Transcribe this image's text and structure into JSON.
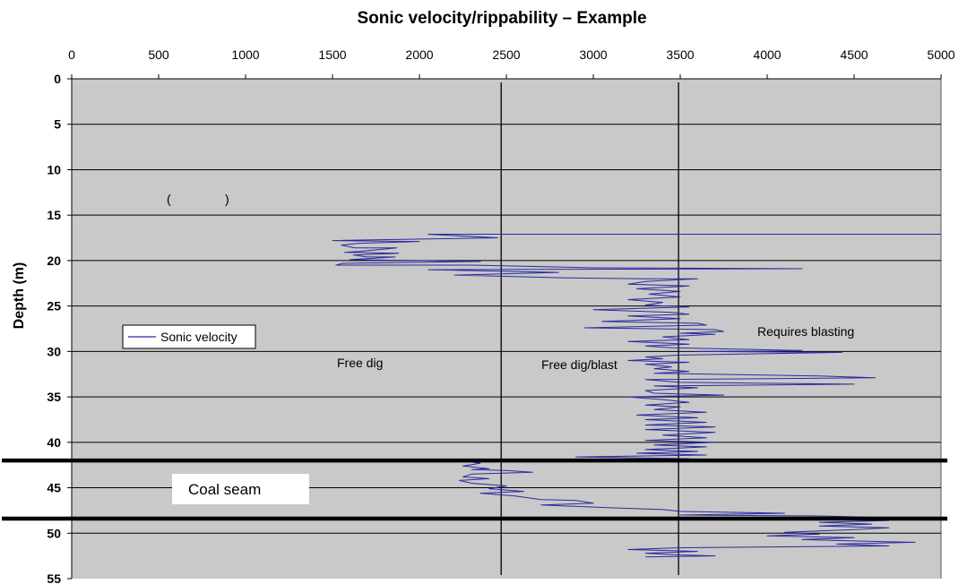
{
  "chart_data": {
    "type": "line",
    "title": "Sonic velocity/rippability – Example",
    "xlabel": "",
    "ylabel": "Depth (m)",
    "xlim": [
      0,
      5000
    ],
    "ylim": [
      0,
      55
    ],
    "y_inverted": true,
    "x_axis_position": "top",
    "x_ticks": [
      "0",
      "500",
      "1000",
      "1500",
      "2000",
      "2500",
      "3000",
      "3500",
      "4000",
      "4500",
      "5000"
    ],
    "y_ticks": [
      "0",
      "5",
      "10",
      "15",
      "20",
      "25",
      "30",
      "35",
      "40",
      "45",
      "50",
      "55"
    ],
    "grid": "horizontal",
    "legend_position": "left",
    "series": [
      {
        "name": "Sonic velocity",
        "color": "#2b2b9e",
        "points": [
          [
            5000,
            17.1
          ],
          [
            2050,
            17.1
          ],
          [
            2450,
            17.5
          ],
          [
            1500,
            17.8
          ],
          [
            2000,
            17.9
          ],
          [
            1650,
            18.1
          ],
          [
            1550,
            18.3
          ],
          [
            1630,
            18.6
          ],
          [
            1870,
            18.6
          ],
          [
            1650,
            19.0
          ],
          [
            1570,
            19.1
          ],
          [
            1880,
            19.2
          ],
          [
            1620,
            19.4
          ],
          [
            1700,
            19.6
          ],
          [
            1860,
            19.6
          ],
          [
            1600,
            19.9
          ],
          [
            2350,
            20.1
          ],
          [
            1560,
            20.3
          ],
          [
            1520,
            20.5
          ],
          [
            2300,
            20.5
          ],
          [
            3000,
            20.8
          ],
          [
            4200,
            20.9
          ],
          [
            2050,
            21.0
          ],
          [
            2800,
            21.3
          ],
          [
            2200,
            21.6
          ],
          [
            2850,
            21.9
          ],
          [
            3300,
            22.0
          ],
          [
            3600,
            22.0
          ],
          [
            3300,
            22.3
          ],
          [
            3200,
            22.6
          ],
          [
            3550,
            22.8
          ],
          [
            3250,
            23.1
          ],
          [
            3500,
            23.4
          ],
          [
            3320,
            23.7
          ],
          [
            3500,
            24.0
          ],
          [
            3200,
            24.3
          ],
          [
            3400,
            24.6
          ],
          [
            3300,
            24.9
          ],
          [
            3550,
            25.1
          ],
          [
            3000,
            25.4
          ],
          [
            3450,
            25.7
          ],
          [
            3550,
            25.9
          ],
          [
            3200,
            26.1
          ],
          [
            3500,
            26.4
          ],
          [
            3050,
            26.7
          ],
          [
            3600,
            26.9
          ],
          [
            3650,
            27.1
          ],
          [
            2950,
            27.4
          ],
          [
            3700,
            27.6
          ],
          [
            3750,
            27.8
          ],
          [
            3500,
            28.0
          ],
          [
            3700,
            28.1
          ],
          [
            3400,
            28.4
          ],
          [
            3550,
            28.7
          ],
          [
            3200,
            28.9
          ],
          [
            3550,
            29.2
          ],
          [
            3300,
            29.4
          ],
          [
            3450,
            29.6
          ],
          [
            4200,
            29.9
          ],
          [
            3600,
            30.0
          ],
          [
            4430,
            30.1
          ],
          [
            3500,
            30.4
          ],
          [
            3300,
            30.6
          ],
          [
            3400,
            30.8
          ],
          [
            3200,
            31.0
          ],
          [
            3550,
            31.2
          ],
          [
            3300,
            31.4
          ],
          [
            3450,
            31.7
          ],
          [
            3350,
            31.9
          ],
          [
            3550,
            32.2
          ],
          [
            3350,
            32.4
          ],
          [
            4300,
            32.7
          ],
          [
            4620,
            32.9
          ],
          [
            3300,
            33.1
          ],
          [
            3500,
            33.4
          ],
          [
            4500,
            33.6
          ],
          [
            3350,
            33.8
          ],
          [
            3600,
            34.0
          ],
          [
            3300,
            34.3
          ],
          [
            3350,
            34.6
          ],
          [
            3750,
            34.8
          ],
          [
            3200,
            35.0
          ],
          [
            3400,
            35.3
          ],
          [
            3550,
            35.6
          ],
          [
            3300,
            35.9
          ],
          [
            3500,
            36.1
          ],
          [
            3350,
            36.4
          ],
          [
            3650,
            36.7
          ],
          [
            3250,
            37.0
          ],
          [
            3600,
            37.3
          ],
          [
            3300,
            37.5
          ],
          [
            3650,
            37.8
          ],
          [
            3300,
            38.1
          ],
          [
            3700,
            38.3
          ],
          [
            3300,
            38.6
          ],
          [
            3700,
            38.9
          ],
          [
            3400,
            39.2
          ],
          [
            3650,
            39.5
          ],
          [
            3300,
            39.8
          ],
          [
            3700,
            40.0
          ],
          [
            3350,
            40.3
          ],
          [
            3650,
            40.5
          ],
          [
            3300,
            40.8
          ],
          [
            3600,
            41.0
          ],
          [
            3250,
            41.2
          ],
          [
            3650,
            41.4
          ],
          [
            2900,
            41.6
          ],
          [
            3550,
            41.8
          ],
          [
            2800,
            41.9
          ],
          [
            2250,
            42.0
          ],
          [
            2350,
            42.3
          ],
          [
            2250,
            42.6
          ],
          [
            2400,
            42.9
          ],
          [
            2300,
            43.0
          ],
          [
            2500,
            43.1
          ],
          [
            2650,
            43.3
          ],
          [
            2300,
            43.5
          ],
          [
            2250,
            43.8
          ],
          [
            2400,
            44.0
          ],
          [
            2230,
            44.2
          ],
          [
            2300,
            44.5
          ],
          [
            2500,
            44.8
          ],
          [
            2400,
            45.1
          ],
          [
            2600,
            45.4
          ],
          [
            2350,
            45.6
          ],
          [
            2550,
            45.9
          ],
          [
            2700,
            46.3
          ],
          [
            2900,
            46.4
          ],
          [
            3000,
            46.7
          ],
          [
            2700,
            46.9
          ],
          [
            3100,
            47.2
          ],
          [
            3400,
            47.4
          ],
          [
            3500,
            47.6
          ],
          [
            4100,
            47.8
          ],
          [
            3500,
            48.0
          ],
          [
            4300,
            48.1
          ],
          [
            4700,
            48.3
          ],
          [
            4000,
            48.4
          ],
          [
            4700,
            48.6
          ],
          [
            4300,
            48.8
          ],
          [
            4600,
            49.0
          ],
          [
            4300,
            49.2
          ],
          [
            4700,
            49.4
          ],
          [
            4500,
            49.6
          ],
          [
            4100,
            49.9
          ],
          [
            4300,
            50.1
          ],
          [
            4000,
            50.3
          ],
          [
            4500,
            50.5
          ],
          [
            4200,
            50.7
          ],
          [
            4600,
            50.9
          ],
          [
            4850,
            51.0
          ],
          [
            4400,
            51.2
          ],
          [
            4700,
            51.4
          ],
          [
            3500,
            51.6
          ],
          [
            3200,
            51.8
          ],
          [
            3600,
            52.0
          ],
          [
            3300,
            52.2
          ],
          [
            3500,
            52.4
          ],
          [
            3700,
            52.5
          ],
          [
            3300,
            52.6
          ]
        ]
      }
    ],
    "vertical_lines": [
      {
        "x": 2470,
        "label": "Free dig"
      },
      {
        "x": 3490,
        "label": "Free dig/blast"
      }
    ],
    "horizontal_bold_lines": [
      42,
      48.4
    ],
    "annotations": {
      "free_dig": "Free dig",
      "free_dig_blast": "Free dig/blast",
      "requires_blasting": "Requires blasting",
      "coal_seam": "Coal seam",
      "paren_open": "(",
      "paren_close": ")"
    }
  }
}
